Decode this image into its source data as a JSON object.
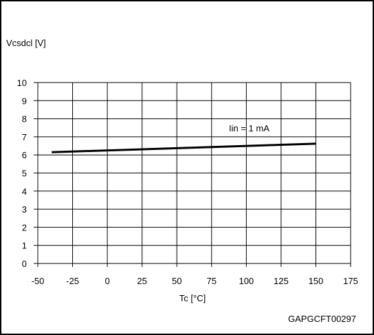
{
  "chart_data": {
    "type": "line",
    "ylabel": "Vcsdcl [V]",
    "xlabel": "Tc [°C]",
    "xlim": [
      -50,
      175
    ],
    "ylim": [
      0,
      10
    ],
    "x_ticks": [
      -50,
      -25,
      0,
      25,
      50,
      75,
      100,
      125,
      150,
      175
    ],
    "y_ticks": [
      0,
      1,
      2,
      3,
      4,
      5,
      6,
      7,
      8,
      9,
      10
    ],
    "grid": true,
    "series": [
      {
        "name": "Iin = 1 mA",
        "x": [
          -40,
          150
        ],
        "y": [
          6.15,
          6.62
        ]
      }
    ],
    "annotation": "Iin = 1 mA",
    "figure_code": "GAPGCFT00297"
  }
}
